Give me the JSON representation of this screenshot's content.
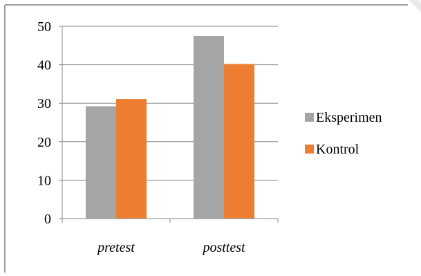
{
  "chart_data": {
    "type": "bar",
    "categories": [
      "pretest",
      "posttest"
    ],
    "series": [
      {
        "name": "Eksperimen",
        "values": [
          29.2,
          47.5
        ],
        "color": "#A5A5A5"
      },
      {
        "name": "Kontrol",
        "values": [
          31.1,
          40.2
        ],
        "color": "#ED7D31"
      }
    ],
    "title": "",
    "xlabel": "",
    "ylabel": "",
    "ylim": [
      0,
      50
    ],
    "yticks": [
      "0",
      "10",
      "20",
      "30",
      "40",
      "50"
    ],
    "grid": true,
    "legend_position": "right"
  },
  "colors": {
    "gridline": "#868686",
    "frame": "#7F7F7F",
    "background": "#FFFFFF"
  }
}
